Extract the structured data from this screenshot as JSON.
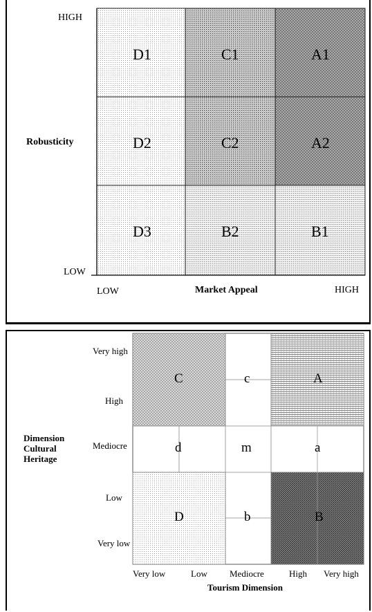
{
  "top_matrix": {
    "y_axis": {
      "title": "Robusticity",
      "high": "HIGH",
      "low": "LOW"
    },
    "x_axis": {
      "title": "Market Appeal",
      "low": "LOW",
      "high": "HIGH"
    },
    "cells": [
      {
        "label": "D1",
        "row": 0,
        "col": 0,
        "pattern": "fine-dots"
      },
      {
        "label": "C1",
        "row": 0,
        "col": 1,
        "pattern": "dense-dots"
      },
      {
        "label": "A1",
        "row": 0,
        "col": 2,
        "pattern": "crosshatch"
      },
      {
        "label": "D2",
        "row": 1,
        "col": 0,
        "pattern": "fine-dots"
      },
      {
        "label": "C2",
        "row": 1,
        "col": 1,
        "pattern": "dense-dots"
      },
      {
        "label": "A2",
        "row": 1,
        "col": 2,
        "pattern": "crosshatch"
      },
      {
        "label": "D3",
        "row": 2,
        "col": 0,
        "pattern": "fine-dots"
      },
      {
        "label": "B2",
        "row": 2,
        "col": 1,
        "pattern": "grid-dots"
      },
      {
        "label": "B1",
        "row": 2,
        "col": 2,
        "pattern": "grid-dots"
      }
    ]
  },
  "bottom_matrix": {
    "y_axis": {
      "title_lines": [
        "Dimension",
        "Cultural",
        "Heritage"
      ],
      "ticks": [
        "Very high",
        "High",
        "Mediocre",
        "Low",
        "Very low"
      ]
    },
    "x_axis": {
      "title": "Tourism Dimension",
      "ticks": [
        "Very low",
        "Low",
        "Mediocre",
        "High",
        "Very high"
      ]
    },
    "regions": {
      "C": "C",
      "c": "c",
      "A": "A",
      "d": "d",
      "m": "m",
      "a": "a",
      "D": "D",
      "b": "b",
      "B": "B"
    }
  }
}
